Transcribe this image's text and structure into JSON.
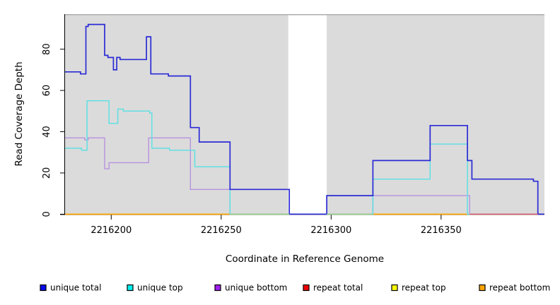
{
  "chart_data": {
    "type": "line",
    "subtype": "step-coverage",
    "title": "",
    "xlabel": "Coordinate in Reference Genome",
    "ylabel": "Read Coverage Depth",
    "xlim": [
      2216179,
      2216397
    ],
    "ylim": [
      0,
      97
    ],
    "x_ticks": [
      2216200,
      2216250,
      2216300,
      2216350
    ],
    "y_ticks": [
      0,
      20,
      40,
      60,
      80
    ],
    "grid": false,
    "panel_color": "#DBDBDB",
    "panel_border_color": "#ADADAD",
    "gap_region": {
      "from": 2216280.5,
      "to": 2216298,
      "color": "#FFFFFF"
    },
    "legend_position": "bottom",
    "series": [
      {
        "name": "unique total",
        "line_color": "#2B2BD5",
        "legend_color": "#0B0BEE",
        "zorder": 6,
        "end": 2216397,
        "points": [
          [
            2216179,
            69
          ],
          [
            2216186,
            68
          ],
          [
            2216188.5,
            91
          ],
          [
            2216189.5,
            92
          ],
          [
            2216197,
            77
          ],
          [
            2216198.5,
            76
          ],
          [
            2216201,
            70
          ],
          [
            2216202.5,
            76
          ],
          [
            2216204,
            75
          ],
          [
            2216216,
            86
          ],
          [
            2216218,
            68
          ],
          [
            2216226,
            67
          ],
          [
            2216236,
            42
          ],
          [
            2216240,
            35
          ],
          [
            2216254,
            12
          ],
          [
            2216281,
            0
          ],
          [
            2216298,
            9
          ],
          [
            2216319,
            26
          ],
          [
            2216345,
            43
          ],
          [
            2216362,
            26
          ],
          [
            2216364,
            17
          ],
          [
            2216392,
            16
          ],
          [
            2216394,
            0
          ]
        ]
      },
      {
        "name": "unique top",
        "line_color": "#58E0E4",
        "legend_color": "#00EEEE",
        "zorder": 5,
        "end": 2216363,
        "points": [
          [
            2216179,
            32
          ],
          [
            2216186.5,
            31
          ],
          [
            2216189,
            55
          ],
          [
            2216199,
            44
          ],
          [
            2216203,
            51
          ],
          [
            2216205.5,
            50
          ],
          [
            2216217.5,
            49
          ],
          [
            2216218.5,
            32
          ],
          [
            2216226.5,
            31
          ],
          [
            2216238,
            23
          ],
          [
            2216254,
            0
          ],
          [
            2216319,
            17
          ],
          [
            2216345,
            34
          ],
          [
            2216362,
            0
          ]
        ]
      },
      {
        "name": "unique bottom",
        "line_color": "#B892E0",
        "legend_color": "#A020F0",
        "zorder": 4,
        "end": 2216397,
        "points": [
          [
            2216179,
            37
          ],
          [
            2216188,
            36
          ],
          [
            2216189.5,
            37
          ],
          [
            2216197,
            22
          ],
          [
            2216199,
            25
          ],
          [
            2216217,
            37
          ],
          [
            2216236,
            12
          ],
          [
            2216254,
            0
          ],
          [
            2216319,
            9
          ],
          [
            2216363,
            0
          ]
        ]
      },
      {
        "name": "repeat total",
        "line_color": "#DD0000",
        "legend_color": "#EE0000",
        "zorder": 1,
        "end": 2216397,
        "points": [
          [
            2216179,
            0
          ]
        ]
      },
      {
        "name": "repeat top",
        "line_color": "#FFFF00",
        "legend_color": "#FFFF00",
        "zorder": 2,
        "end": 2216397,
        "points": [
          [
            2216179,
            0
          ]
        ]
      },
      {
        "name": "repeat bottom",
        "line_color": "#FFA500",
        "legend_color": "#FFA500",
        "zorder": 3,
        "end": 2216397,
        "points": [
          [
            2216179,
            0
          ]
        ]
      }
    ],
    "baseline_overlays": [
      {
        "from": 2216254,
        "to": 2216281,
        "color": "#8FCF8F"
      },
      {
        "from": 2216298,
        "to": 2216319,
        "color": "#8FCF8F"
      },
      {
        "from": 2216363,
        "to": 2216394,
        "color": "#C9607E"
      }
    ]
  },
  "legend": {
    "items": [
      "unique total",
      "unique top",
      "unique bottom",
      "repeat total",
      "repeat top",
      "repeat bottom"
    ]
  }
}
